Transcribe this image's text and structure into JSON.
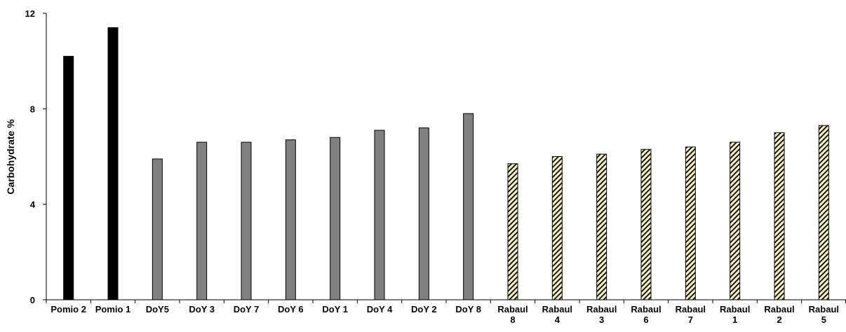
{
  "chart_data": {
    "type": "bar",
    "title": "",
    "xlabel": "",
    "ylabel": "Carbohydrate %",
    "ylim": [
      0,
      12
    ],
    "yticks": [
      "0",
      "4",
      "8",
      "12"
    ],
    "grid": false,
    "legend": "none",
    "categories": [
      "Pomio 2",
      "Pomio 1",
      "DoY5",
      "DoY 3",
      "DoY 7",
      "DoY 6",
      "DoY 1",
      "DoY 4",
      "DoY 2",
      "DoY 8",
      "Rabaul 8",
      "Rabaul 4",
      "Rabaul 3",
      "Rabaul 6",
      "Rabaul 7",
      "Rabaul 1",
      "Rabaul 2",
      "Rabaul 5"
    ],
    "category_lines": [
      [
        "Pomio 2"
      ],
      [
        "Pomio 1"
      ],
      [
        "DoY5"
      ],
      [
        "DoY 3"
      ],
      [
        "DoY 7"
      ],
      [
        "DoY 6"
      ],
      [
        "DoY 1"
      ],
      [
        "DoY 4"
      ],
      [
        "DoY 2"
      ],
      [
        "DoY 8"
      ],
      [
        "Rabaul",
        "8"
      ],
      [
        "Rabaul",
        "4"
      ],
      [
        "Rabaul",
        "3"
      ],
      [
        "Rabaul",
        "6"
      ],
      [
        "Rabaul",
        "7"
      ],
      [
        "Rabaul",
        "1"
      ],
      [
        "Rabaul",
        "2"
      ],
      [
        "Rabaul",
        "5"
      ]
    ],
    "values": [
      10.2,
      11.4,
      5.9,
      6.6,
      6.6,
      6.7,
      6.8,
      7.1,
      7.2,
      7.8,
      5.7,
      6.0,
      6.1,
      6.3,
      6.4,
      6.6,
      7.0,
      7.3
    ],
    "groups": [
      {
        "style": "black",
        "from": 0,
        "to": 1
      },
      {
        "style": "gray",
        "from": 2,
        "to": 9
      },
      {
        "style": "hatched",
        "from": 10,
        "to": 17
      }
    ],
    "colors": {
      "black": "#000000",
      "gray": "#808080",
      "hatch_bg": "#f6f2c4",
      "hatch_fg": "#1a1a1a"
    }
  }
}
